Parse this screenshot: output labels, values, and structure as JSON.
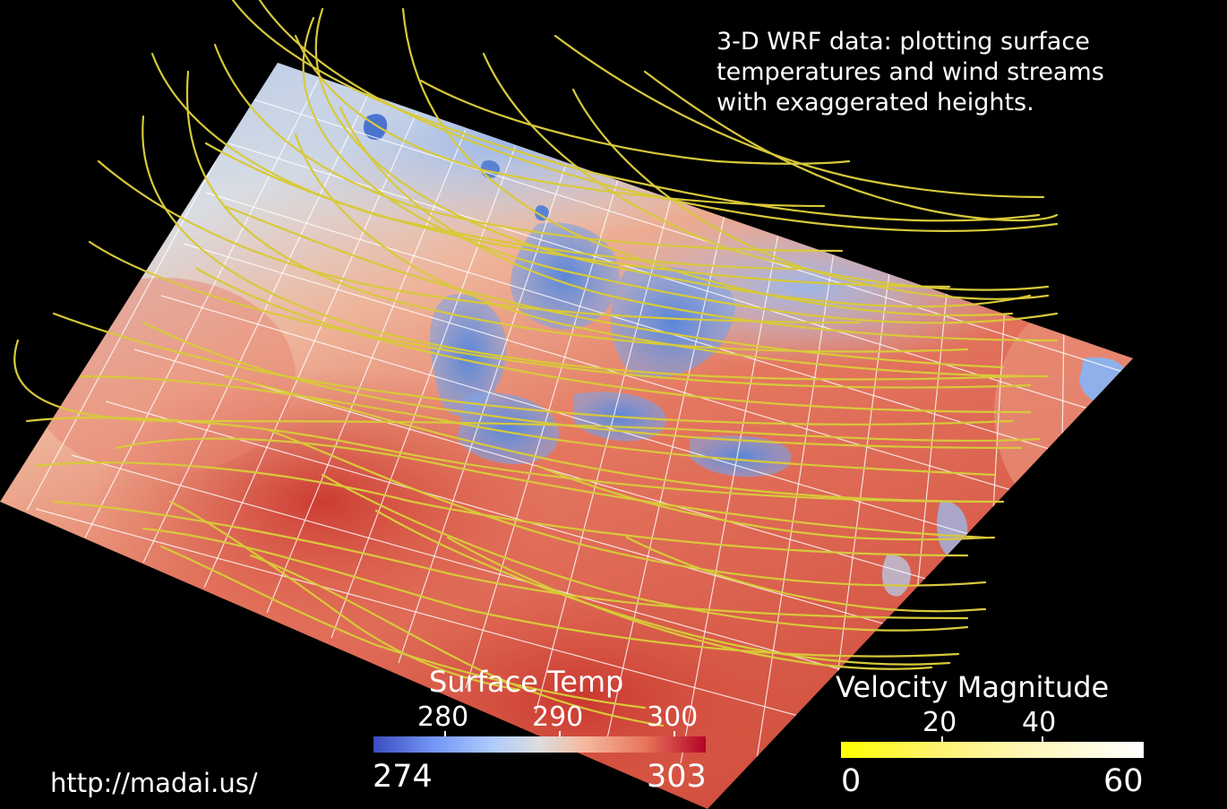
{
  "caption": {
    "line1": "3-D WRF data: plotting surface",
    "line2": "temperatures and wind streams",
    "line3": "with exaggerated heights."
  },
  "temp_legend": {
    "title": "Surface Temp",
    "ticks": [
      "280",
      "290",
      "300"
    ],
    "min": "274",
    "max": "303",
    "colors": [
      "#3b4cc0",
      "#dcdddd",
      "#b40426"
    ]
  },
  "velocity_legend": {
    "title": "Velocity Magnitude",
    "ticks": [
      "20",
      "40"
    ],
    "min": "0",
    "max": "60",
    "colors": [
      "#ffff00",
      "#ffffff"
    ]
  },
  "url": "http://madai.us/",
  "streamline_color": "#d8c93a"
}
